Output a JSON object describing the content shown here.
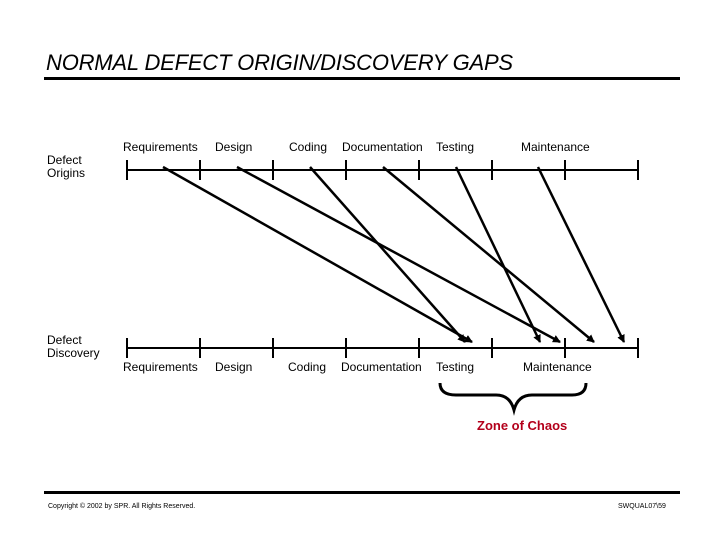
{
  "title": "NORMAL DEFECT ORIGIN/DISCOVERY GAPS",
  "origins_label": [
    "Defect",
    "Origins"
  ],
  "discovery_label": [
    "Defect",
    "Discovery"
  ],
  "phases_top": [
    "Requirements",
    "Design",
    "Coding",
    "Documentation",
    "Testing",
    "Maintenance"
  ],
  "phases_bottom": [
    "Requirements",
    "Design",
    "Coding",
    "Documentation",
    "Testing",
    "Maintenance"
  ],
  "zone_label": "Zone of Chaos",
  "copyright": "Copyright © 2002 by SPR.  All Rights Reserved.",
  "doc_code": "SWQUAL07\\59"
}
